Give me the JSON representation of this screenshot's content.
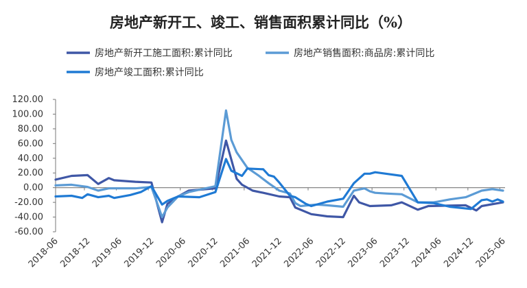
{
  "chart_data": {
    "type": "line",
    "title": "房地产新开工、竣工、销售面积累计同比（%）",
    "xlabel": "",
    "ylabel": "",
    "ylim": [
      -60,
      120
    ],
    "yticks": [
      "120.00",
      "100.00",
      "80.00",
      "60.00",
      "40.00",
      "20.00",
      "0.00",
      "-20.00",
      "-40.00",
      "-60.00"
    ],
    "xlim": [
      "2018-06",
      "2025-06"
    ],
    "xticks": [
      "2018-06",
      "2018-12",
      "2019-06",
      "2019-12",
      "2020-06",
      "2020-12",
      "2021-06",
      "2021-12",
      "2022-06",
      "2022-12",
      "2023-06",
      "2023-12",
      "2024-06",
      "2024-12",
      "2025-06"
    ],
    "grid": false,
    "legend_position": "top",
    "series": [
      {
        "name": "房地产新开工施工面积:累计同比",
        "color": "#3F57A6",
        "points": [
          [
            "2018-06",
            11
          ],
          [
            "2018-09",
            16
          ],
          [
            "2018-12",
            17
          ],
          [
            "2019-02",
            5
          ],
          [
            "2019-04",
            13
          ],
          [
            "2019-05",
            10
          ],
          [
            "2019-09",
            8
          ],
          [
            "2019-12",
            7
          ],
          [
            "2020-02",
            -47
          ],
          [
            "2020-03",
            -22
          ],
          [
            "2020-05",
            -12
          ],
          [
            "2020-07",
            -4
          ],
          [
            "2020-12",
            -1
          ],
          [
            "2021-02",
            64
          ],
          [
            "2021-04",
            12
          ],
          [
            "2021-05",
            4
          ],
          [
            "2021-07",
            -4
          ],
          [
            "2021-09",
            -7
          ],
          [
            "2021-12",
            -12
          ],
          [
            "2022-02",
            -13
          ],
          [
            "2022-03",
            -27
          ],
          [
            "2022-06",
            -36
          ],
          [
            "2022-09",
            -39
          ],
          [
            "2022-12",
            -40
          ],
          [
            "2023-02",
            -11
          ],
          [
            "2023-03",
            -20
          ],
          [
            "2023-05",
            -25
          ],
          [
            "2023-09",
            -24
          ],
          [
            "2023-11",
            -20
          ],
          [
            "2024-02",
            -30
          ],
          [
            "2024-04",
            -25
          ],
          [
            "2024-11",
            -24
          ],
          [
            "2025-01",
            -31
          ],
          [
            "2025-02",
            -25
          ],
          [
            "2025-06",
            -20
          ]
        ]
      },
      {
        "name": "房地产销售面积:商品房:累计同比",
        "color": "#5B9BD5",
        "points": [
          [
            "2018-06",
            3
          ],
          [
            "2018-09",
            4
          ],
          [
            "2018-12",
            1
          ],
          [
            "2019-02",
            -4
          ],
          [
            "2019-04",
            -1
          ],
          [
            "2019-09",
            -1
          ],
          [
            "2019-12",
            1
          ],
          [
            "2020-02",
            -40
          ],
          [
            "2020-03",
            -27
          ],
          [
            "2020-05",
            -12
          ],
          [
            "2020-07",
            -6
          ],
          [
            "2020-12",
            2
          ],
          [
            "2021-02",
            105
          ],
          [
            "2021-03",
            65
          ],
          [
            "2021-04",
            48
          ],
          [
            "2021-06",
            27
          ],
          [
            "2021-08",
            17
          ],
          [
            "2021-10",
            6
          ],
          [
            "2021-12",
            -4
          ],
          [
            "2022-02",
            -8
          ],
          [
            "2022-03",
            -21
          ],
          [
            "2022-04",
            -25
          ],
          [
            "2022-07",
            -23
          ],
          [
            "2022-09",
            -24
          ],
          [
            "2022-12",
            -26
          ],
          [
            "2023-02",
            -4
          ],
          [
            "2023-04",
            -1
          ],
          [
            "2023-05",
            -5
          ],
          [
            "2023-06",
            -7
          ],
          [
            "2023-08",
            -8
          ],
          [
            "2023-11",
            -9
          ],
          [
            "2024-02",
            -20
          ],
          [
            "2024-05",
            -20
          ],
          [
            "2024-08",
            -16
          ],
          [
            "2024-11",
            -13
          ],
          [
            "2025-02",
            -4
          ],
          [
            "2025-04",
            -2
          ],
          [
            "2025-06",
            -4
          ]
        ]
      },
      {
        "name": "房地产竣工面积:累计同比",
        "color": "#1F7AD4",
        "points": [
          [
            "2018-06",
            -12
          ],
          [
            "2018-09",
            -11
          ],
          [
            "2018-11",
            -14
          ],
          [
            "2018-12",
            -9
          ],
          [
            "2019-02",
            -13
          ],
          [
            "2019-04",
            -11
          ],
          [
            "2019-05",
            -14
          ],
          [
            "2019-08",
            -10
          ],
          [
            "2019-10",
            -6
          ],
          [
            "2019-12",
            2
          ],
          [
            "2020-02",
            -23
          ],
          [
            "2020-03",
            -18
          ],
          [
            "2020-05",
            -12
          ],
          [
            "2020-09",
            -13
          ],
          [
            "2020-12",
            -6
          ],
          [
            "2021-02",
            39
          ],
          [
            "2021-03",
            23
          ],
          [
            "2021-05",
            16
          ],
          [
            "2021-06",
            26
          ],
          [
            "2021-09",
            25
          ],
          [
            "2021-10",
            17
          ],
          [
            "2021-11",
            15
          ],
          [
            "2021-12",
            7
          ],
          [
            "2022-02",
            -11
          ],
          [
            "2022-03",
            -13
          ],
          [
            "2022-05",
            -22
          ],
          [
            "2022-06",
            -25
          ],
          [
            "2022-09",
            -19
          ],
          [
            "2022-12",
            -15
          ],
          [
            "2023-02",
            6
          ],
          [
            "2023-04",
            19
          ],
          [
            "2023-05",
            19
          ],
          [
            "2023-06",
            21
          ],
          [
            "2023-08",
            19
          ],
          [
            "2023-11",
            16
          ],
          [
            "2024-02",
            -20
          ],
          [
            "2024-05",
            -21
          ],
          [
            "2024-08",
            -26
          ],
          [
            "2024-12",
            -29
          ],
          [
            "2025-02",
            -17
          ],
          [
            "2025-03",
            -16
          ],
          [
            "2025-04",
            -19
          ],
          [
            "2025-05",
            -16
          ],
          [
            "2025-06",
            -19
          ]
        ]
      }
    ]
  }
}
